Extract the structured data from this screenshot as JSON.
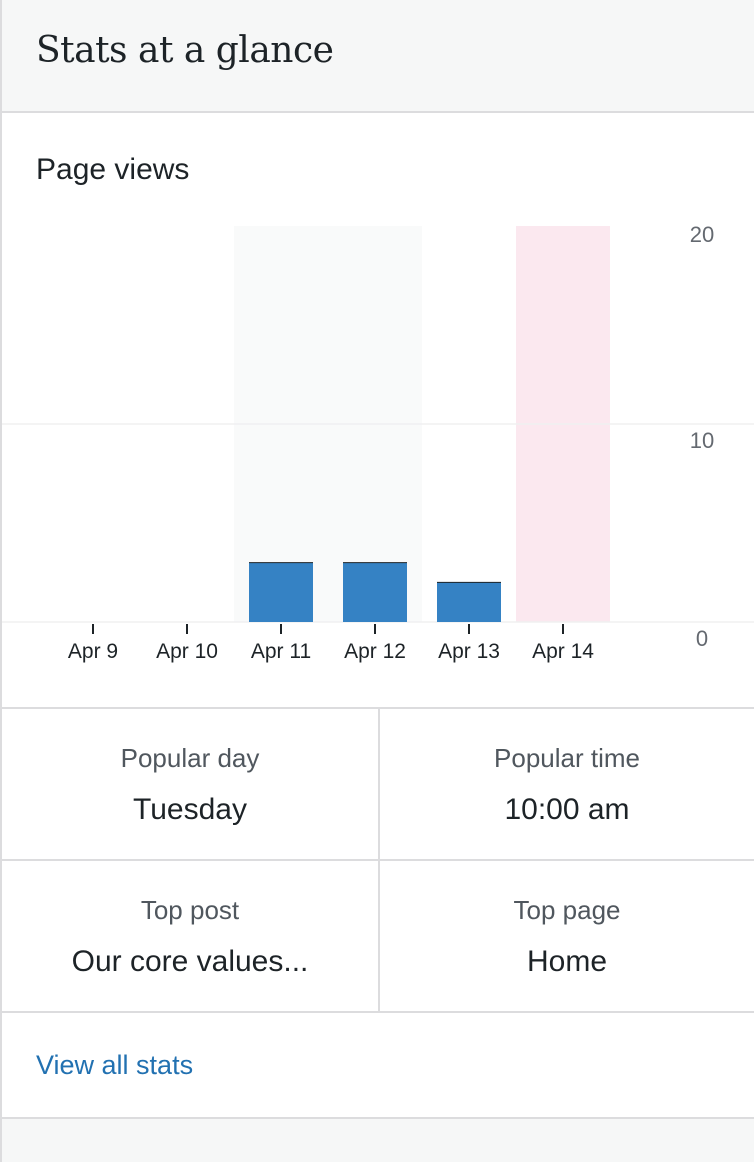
{
  "header": {
    "title": "Stats at a glance"
  },
  "chart_data": {
    "type": "bar",
    "title": "Page views",
    "categories": [
      "Apr 9",
      "Apr 10",
      "Apr 11",
      "Apr 12",
      "Apr 13",
      "Apr 14"
    ],
    "values": [
      0,
      0,
      3,
      3,
      2,
      0
    ],
    "y_ticks": [
      "0",
      "10",
      "20"
    ],
    "ylim": [
      0,
      20
    ],
    "highlight_weekend": [
      "Apr 11",
      "Apr 12"
    ],
    "highlight_selected": "Apr 14",
    "bar_color": "#3582c4",
    "weekend_color": "#f9fafa",
    "selected_color": "#fbe8ef",
    "grid": true,
    "y_axis_position": "right"
  },
  "stats": {
    "popular_day": {
      "label": "Popular day",
      "value": "Tuesday"
    },
    "popular_time": {
      "label": "Popular time",
      "value": "10:00 am"
    },
    "top_post": {
      "label": "Top post",
      "value": "Our core values..."
    },
    "top_page": {
      "label": "Top page",
      "value": "Home"
    }
  },
  "footer": {
    "link_label": "View all stats"
  }
}
